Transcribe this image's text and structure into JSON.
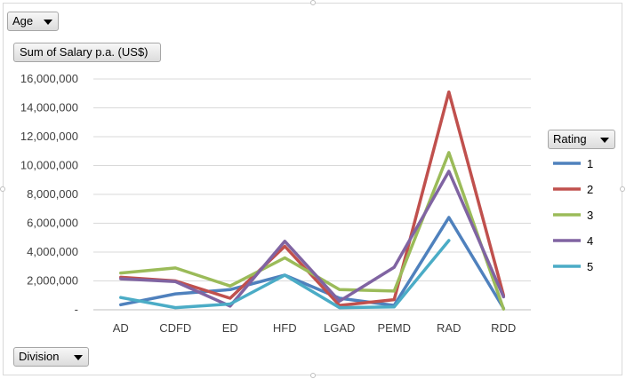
{
  "controls": {
    "filter_field": "Age",
    "value_field": "Sum of Salary p.a. (US$)",
    "axis_field": "Division",
    "legend_field": "Rating"
  },
  "chart_data": {
    "type": "line",
    "title": "",
    "xlabel": "Division",
    "ylabel": "Sum of Salary p.a. (US$)",
    "categories": [
      "AD",
      "CDFD",
      "ED",
      "HFD",
      "LGAD",
      "PEMD",
      "RAD",
      "RDD"
    ],
    "ylim": [
      0,
      16000000
    ],
    "yticks": [
      0,
      2000000,
      4000000,
      6000000,
      8000000,
      10000000,
      12000000,
      14000000,
      16000000
    ],
    "ytick_labels": [
      "-",
      "2,000,000",
      "4,000,000",
      "6,000,000",
      "8,000,000",
      "10,000,000",
      "12,000,000",
      "14,000,000",
      "16,000,000"
    ],
    "grid": true,
    "legend_position": "right",
    "series": [
      {
        "name": "1",
        "color": "#4f81bd",
        "values": [
          350000,
          1100000,
          1400000,
          2400000,
          800000,
          300000,
          6400000,
          100000
        ]
      },
      {
        "name": "2",
        "color": "#c0504d",
        "values": [
          2250000,
          2000000,
          800000,
          4400000,
          300000,
          700000,
          15100000,
          1000000
        ]
      },
      {
        "name": "3",
        "color": "#9bbb59",
        "values": [
          2550000,
          2900000,
          1650000,
          3600000,
          1400000,
          1300000,
          10900000,
          50000
        ]
      },
      {
        "name": "4",
        "color": "#8064a2",
        "values": [
          2150000,
          1950000,
          250000,
          4750000,
          600000,
          2950000,
          9600000,
          900000
        ]
      },
      {
        "name": "5",
        "color": "#4bacc6",
        "values": [
          850000,
          150000,
          400000,
          2400000,
          150000,
          200000,
          4800000,
          null
        ]
      }
    ]
  }
}
